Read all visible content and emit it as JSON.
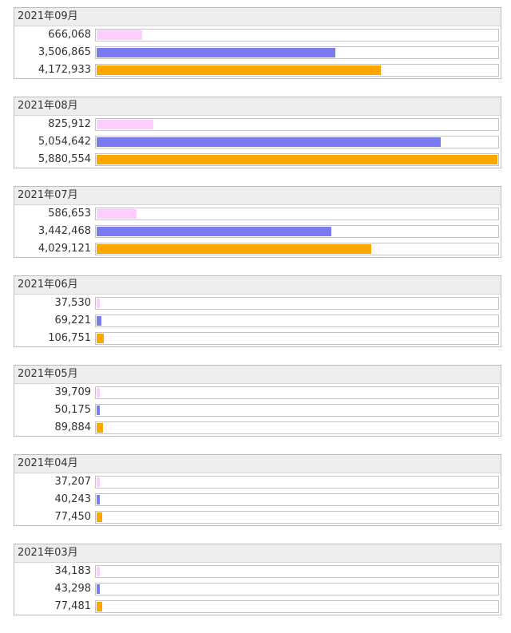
{
  "colors": {
    "series_1": "#ffccff",
    "series_2": "#7b7bf0",
    "series_3": "#ffa500"
  },
  "chart_data": {
    "type": "bar",
    "orientation": "horizontal",
    "xlim": [
      0,
      5880554
    ],
    "groups": [
      {
        "label": "2021年09月",
        "values": [
          666068,
          3506865,
          4172933
        ],
        "display": [
          "666,068",
          "3,506,865",
          "4,172,933"
        ]
      },
      {
        "label": "2021年08月",
        "values": [
          825912,
          5054642,
          5880554
        ],
        "display": [
          "825,912",
          "5,054,642",
          "5,880,554"
        ]
      },
      {
        "label": "2021年07月",
        "values": [
          586653,
          3442468,
          4029121
        ],
        "display": [
          "586,653",
          "3,442,468",
          "4,029,121"
        ]
      },
      {
        "label": "2021年06月",
        "values": [
          37530,
          69221,
          106751
        ],
        "display": [
          "37,530",
          "69,221",
          "106,751"
        ]
      },
      {
        "label": "2021年05月",
        "values": [
          39709,
          50175,
          89884
        ],
        "display": [
          "39,709",
          "50,175",
          "89,884"
        ]
      },
      {
        "label": "2021年04月",
        "values": [
          37207,
          40243,
          77450
        ],
        "display": [
          "37,207",
          "40,243",
          "77,450"
        ]
      },
      {
        "label": "2021年03月",
        "values": [
          34183,
          43298,
          77481
        ],
        "display": [
          "34,183",
          "43,298",
          "77,481"
        ]
      }
    ]
  }
}
